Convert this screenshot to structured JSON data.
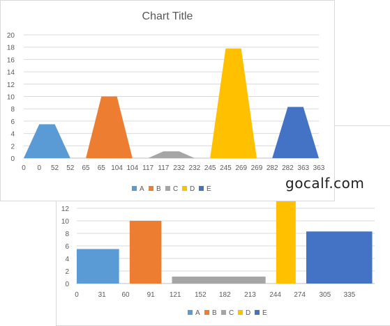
{
  "watermark": "gocalf.com",
  "chart_data": [
    {
      "id": "top",
      "type": "area",
      "title": "Chart Title",
      "ylim": [
        0,
        20
      ],
      "yticks": [
        0,
        2,
        4,
        6,
        8,
        10,
        12,
        14,
        16,
        18,
        20
      ],
      "xtick_labels": [
        "0",
        "0",
        "52",
        "52",
        "65",
        "65",
        "104",
        "104",
        "117",
        "117",
        "232",
        "232",
        "245",
        "245",
        "269",
        "269",
        "282",
        "282",
        "363",
        "363"
      ],
      "grid": true,
      "legend_position": "bottom",
      "series": [
        {
          "name": "A",
          "color": "#5b9bd5",
          "x": [
            0,
            0,
            52,
            52
          ],
          "y": [
            0,
            5.5,
            5.5,
            0
          ]
        },
        {
          "name": "B",
          "color": "#ed7d31",
          "x": [
            65,
            65,
            104,
            104
          ],
          "y": [
            0,
            10,
            10,
            0
          ]
        },
        {
          "name": "C",
          "color": "#a5a5a5",
          "x": [
            117,
            117,
            232,
            232
          ],
          "y": [
            0,
            1.1,
            1.1,
            0
          ]
        },
        {
          "name": "D",
          "color": "#ffc000",
          "x": [
            245,
            245,
            269,
            269
          ],
          "y": [
            0,
            17.8,
            17.8,
            0
          ]
        },
        {
          "name": "E",
          "color": "#4472c4",
          "x": [
            282,
            282,
            363,
            363
          ],
          "y": [
            0,
            8.3,
            8.3,
            0
          ]
        }
      ]
    },
    {
      "id": "bottom",
      "type": "area",
      "ylim": [
        0,
        14
      ],
      "yticks": [
        0,
        2,
        4,
        6,
        8,
        10,
        12
      ],
      "xlim": [
        0,
        366
      ],
      "xticks": [
        0,
        31,
        60,
        91,
        121,
        152,
        182,
        213,
        244,
        274,
        305,
        335
      ],
      "grid": true,
      "legend_position": "bottom",
      "series": [
        {
          "name": "A",
          "color": "#5b9bd5",
          "x0": 0,
          "x1": 52,
          "y": 5.5
        },
        {
          "name": "B",
          "color": "#ed7d31",
          "x0": 65,
          "x1": 104,
          "y": 10
        },
        {
          "name": "C",
          "color": "#a5a5a5",
          "x0": 117,
          "x1": 232,
          "y": 1.1
        },
        {
          "name": "D",
          "color": "#ffc000",
          "x0": 245,
          "x1": 269,
          "y": 17.8
        },
        {
          "name": "E",
          "color": "#4472c4",
          "x0": 282,
          "x1": 363,
          "y": 8.3
        }
      ]
    }
  ]
}
